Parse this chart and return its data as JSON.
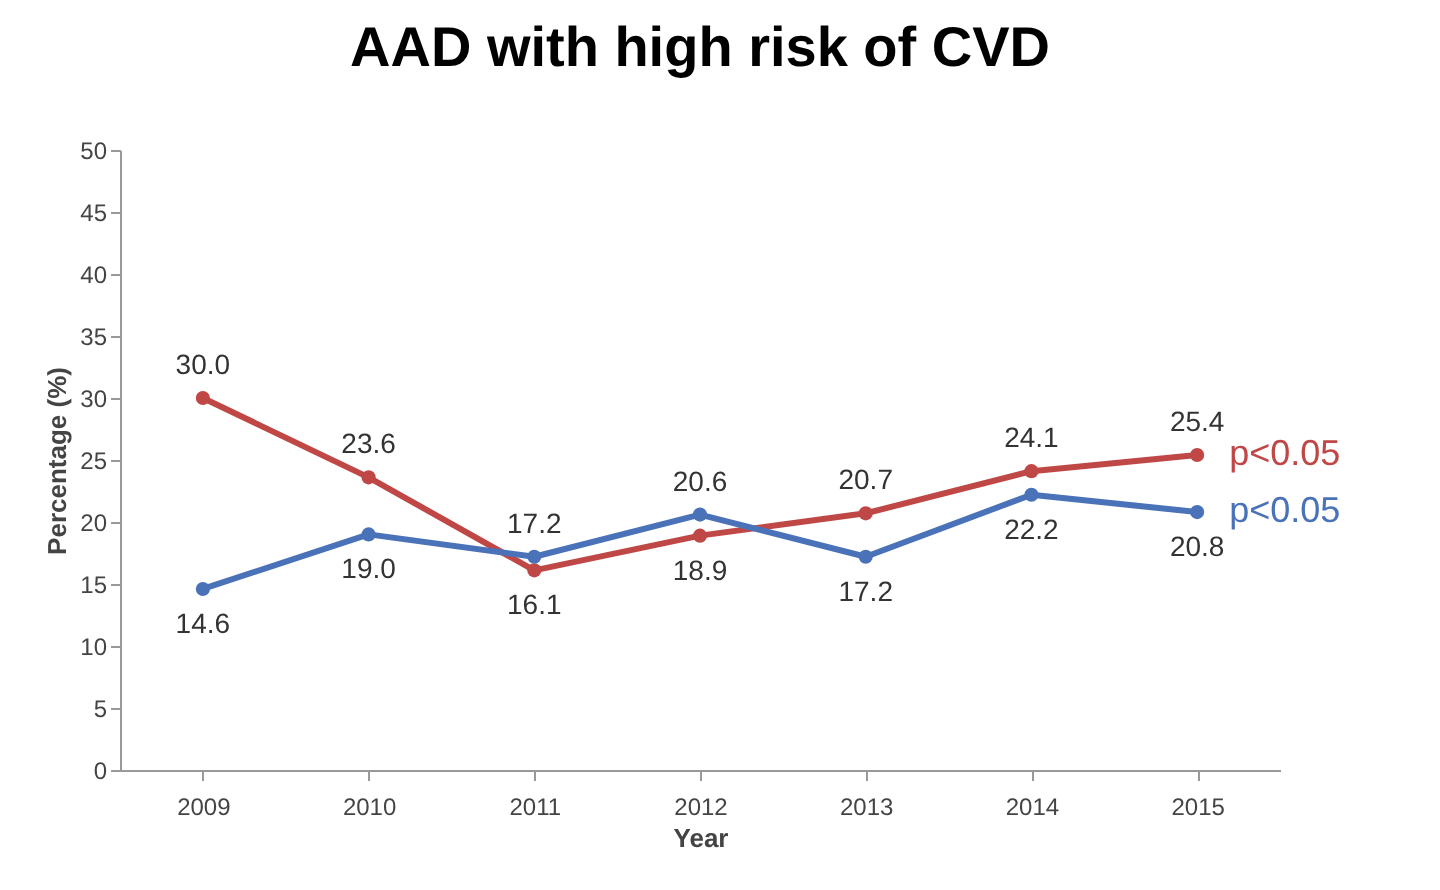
{
  "chart_data": {
    "type": "line",
    "title": "AAD with high risk of CVD",
    "xlabel": "Year",
    "ylabel": "Percentage (%)",
    "categories": [
      "2009",
      "2010",
      "2011",
      "2012",
      "2013",
      "2014",
      "2015"
    ],
    "series": [
      {
        "color": "#bf4846",
        "values": [
          30.0,
          23.6,
          16.1,
          18.9,
          20.7,
          24.1,
          25.4
        ],
        "value_labels": [
          "30.0",
          "23.6",
          "16.1",
          "18.9",
          "20.7",
          "24.1",
          "25.4"
        ]
      },
      {
        "color": "#4a72b8",
        "values": [
          14.6,
          19.0,
          17.2,
          20.6,
          17.2,
          22.2,
          20.8
        ],
        "value_labels": [
          "14.6",
          "19.0",
          "17.2",
          "20.6",
          "17.2",
          "22.2",
          "20.8"
        ]
      }
    ],
    "ylim": [
      0,
      50
    ],
    "yticks": [
      0,
      5,
      10,
      15,
      20,
      25,
      30,
      35,
      40,
      45,
      50
    ],
    "grid": false,
    "marker": "circle",
    "line_style": "solid",
    "annotations": [
      {
        "text": "p<0.05",
        "x": "2015",
        "y": 25.4
      },
      {
        "text": "p<0.05",
        "x": "2015",
        "y": 20.8
      }
    ]
  }
}
